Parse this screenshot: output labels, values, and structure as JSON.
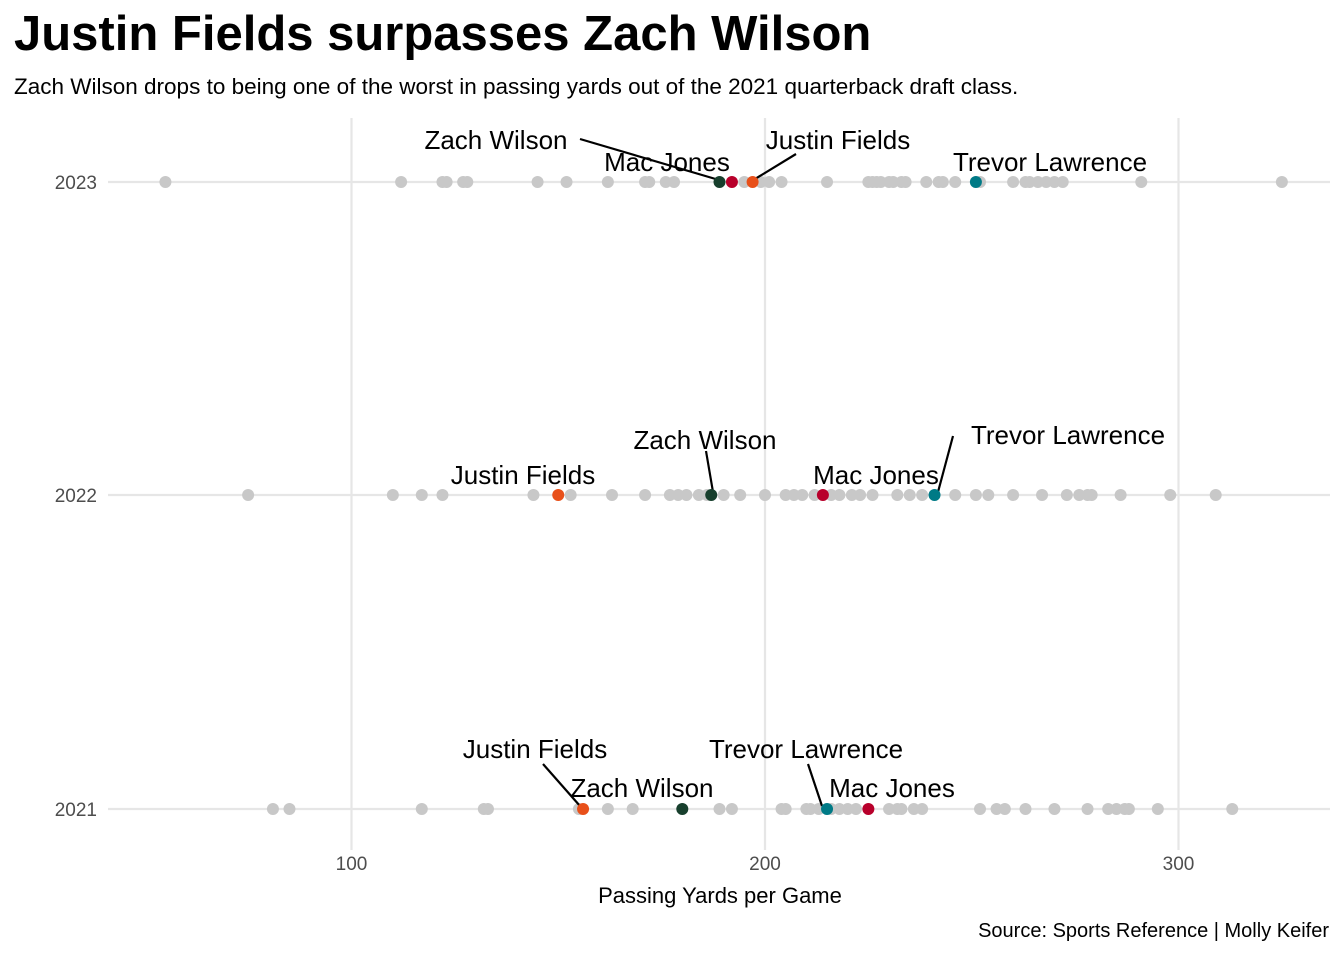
{
  "chart_data": {
    "type": "scatter",
    "title": "Justin Fields surpasses Zach Wilson",
    "subtitle": "Zach Wilson drops to being one of the worst in passing yards out of the 2021 quarterback draft class.",
    "caption": "Source: Sports Reference | Molly Keifer",
    "xlabel": "Passing Yards per Game",
    "ylabel": "",
    "xlim": [
      42,
      338
    ],
    "x_ticks": [
      100,
      200,
      300
    ],
    "y_categories": [
      "2021",
      "2022",
      "2023"
    ],
    "grid": true,
    "colors": {
      "background_point": "#c8c8c8",
      "grid": "#e6e6e6",
      "Justin Fields": "#e8501a",
      "Zach Wilson": "#173f2d",
      "Mac Jones": "#b8002b",
      "Trevor Lawrence": "#007a86"
    },
    "background_points": [
      {
        "year": "2021",
        "x": [
          81,
          85,
          117,
          132,
          133,
          155,
          162,
          168,
          189,
          192,
          204,
          205,
          210,
          211,
          213,
          216,
          218,
          220,
          222,
          230,
          232,
          233,
          236,
          238,
          252,
          256,
          258,
          263,
          270,
          278,
          283,
          285,
          287,
          288,
          295,
          313
        ]
      },
      {
        "year": "2022",
        "x": [
          75,
          110,
          117,
          122,
          144,
          153,
          163,
          171,
          177,
          179,
          181,
          184,
          186,
          190,
          194,
          200,
          205,
          207,
          209,
          212,
          216,
          218,
          221,
          223,
          226,
          232,
          235,
          238,
          246,
          251,
          254,
          260,
          267,
          273,
          276,
          278,
          279,
          286,
          298,
          309
        ]
      },
      {
        "year": "2023",
        "x": [
          55,
          112,
          122,
          123,
          127,
          128,
          145,
          152,
          162,
          171,
          172,
          176,
          178,
          195,
          199,
          201,
          204,
          215,
          225,
          226,
          227,
          228,
          230,
          231,
          233,
          234,
          239,
          242,
          243,
          246,
          252,
          260,
          263,
          264,
          266,
          268,
          270,
          272,
          291,
          325
        ]
      }
    ],
    "series": [
      {
        "name": "Justin Fields",
        "points": [
          {
            "year": "2021",
            "x": 156
          },
          {
            "year": "2022",
            "x": 150
          },
          {
            "year": "2023",
            "x": 197
          }
        ]
      },
      {
        "name": "Zach Wilson",
        "points": [
          {
            "year": "2021",
            "x": 180
          },
          {
            "year": "2022",
            "x": 187
          },
          {
            "year": "2023",
            "x": 189
          }
        ]
      },
      {
        "name": "Mac Jones",
        "points": [
          {
            "year": "2021",
            "x": 225
          },
          {
            "year": "2022",
            "x": 214
          },
          {
            "year": "2023",
            "x": 192
          }
        ]
      },
      {
        "name": "Trevor Lawrence",
        "points": [
          {
            "year": "2021",
            "x": 215
          },
          {
            "year": "2022",
            "x": 241
          },
          {
            "year": "2023",
            "x": 251
          }
        ]
      }
    ]
  }
}
